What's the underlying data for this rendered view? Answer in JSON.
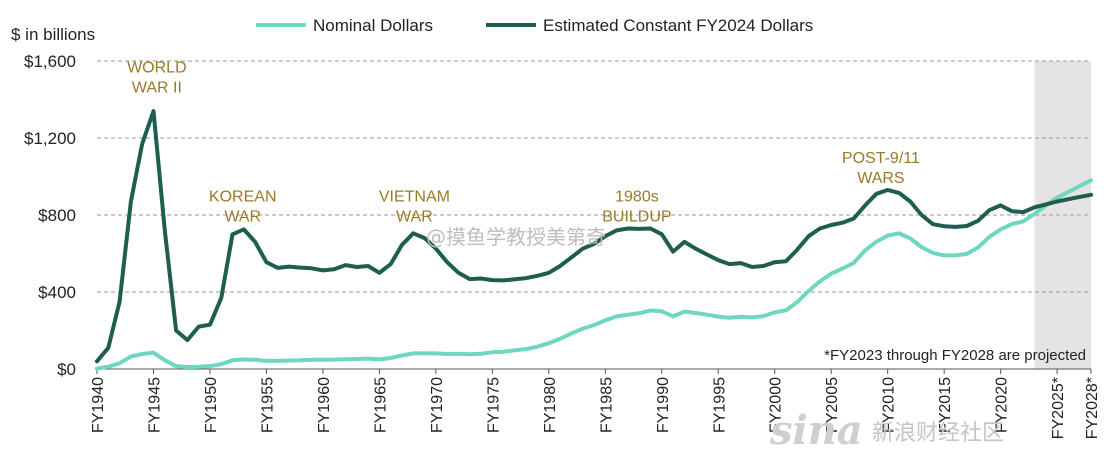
{
  "chart_data": {
    "type": "line",
    "y_unit_label": "$ in billions",
    "ylim": [
      0,
      1600
    ],
    "y_ticks": [
      "$0",
      "$400",
      "$800",
      "$1,200",
      "$1,600"
    ],
    "y_tick_values": [
      0,
      400,
      800,
      1200,
      1600
    ],
    "xlim": [
      1940,
      2028
    ],
    "x_tick_labels": [
      "FY1940",
      "FY1945",
      "FY1950",
      "FY1955",
      "FY1960",
      "FY1965",
      "FY1970",
      "FY1975",
      "FY1980",
      "FY1985",
      "FY1990",
      "FY1995",
      "FY2000",
      "FY2005",
      "FY2010",
      "FY2015",
      "FY2020",
      "FY2025*",
      "FY2028*"
    ],
    "x_tick_years": [
      1940,
      1945,
      1950,
      1955,
      1960,
      1965,
      1970,
      1975,
      1980,
      1985,
      1990,
      1995,
      2000,
      2005,
      2010,
      2015,
      2020,
      2025,
      2028
    ],
    "grid": "horizontal",
    "legend_position": "top",
    "projected_region": [
      2023,
      2028
    ],
    "series": [
      {
        "name": "Nominal Dollars",
        "color": "#6fd6c0",
        "points": [
          [
            1940,
            2
          ],
          [
            1941,
            12
          ],
          [
            1942,
            30
          ],
          [
            1943,
            65
          ],
          [
            1944,
            78
          ],
          [
            1945,
            85
          ],
          [
            1946,
            45
          ],
          [
            1947,
            15
          ],
          [
            1948,
            10
          ],
          [
            1949,
            12
          ],
          [
            1950,
            15
          ],
          [
            1951,
            25
          ],
          [
            1952,
            45
          ],
          [
            1953,
            50
          ],
          [
            1954,
            48
          ],
          [
            1955,
            42
          ],
          [
            1956,
            42
          ],
          [
            1957,
            44
          ],
          [
            1958,
            45
          ],
          [
            1959,
            48
          ],
          [
            1960,
            48
          ],
          [
            1961,
            49
          ],
          [
            1962,
            51
          ],
          [
            1963,
            52
          ],
          [
            1964,
            54
          ],
          [
            1965,
            50
          ],
          [
            1966,
            57
          ],
          [
            1967,
            70
          ],
          [
            1968,
            81
          ],
          [
            1969,
            82
          ],
          [
            1970,
            81
          ],
          [
            1971,
            78
          ],
          [
            1972,
            79
          ],
          [
            1973,
            77
          ],
          [
            1974,
            79
          ],
          [
            1975,
            87
          ],
          [
            1976,
            90
          ],
          [
            1977,
            97
          ],
          [
            1978,
            104
          ],
          [
            1979,
            116
          ],
          [
            1980,
            134
          ],
          [
            1981,
            157
          ],
          [
            1982,
            185
          ],
          [
            1983,
            210
          ],
          [
            1984,
            228
          ],
          [
            1985,
            253
          ],
          [
            1986,
            273
          ],
          [
            1987,
            282
          ],
          [
            1988,
            290
          ],
          [
            1989,
            304
          ],
          [
            1990,
            300
          ],
          [
            1991,
            273
          ],
          [
            1992,
            298
          ],
          [
            1993,
            291
          ],
          [
            1994,
            282
          ],
          [
            1995,
            272
          ],
          [
            1996,
            266
          ],
          [
            1997,
            271
          ],
          [
            1998,
            268
          ],
          [
            1999,
            275
          ],
          [
            2000,
            294
          ],
          [
            2001,
            305
          ],
          [
            2002,
            348
          ],
          [
            2003,
            405
          ],
          [
            2004,
            455
          ],
          [
            2005,
            495
          ],
          [
            2006,
            522
          ],
          [
            2007,
            551
          ],
          [
            2008,
            616
          ],
          [
            2009,
            661
          ],
          [
            2010,
            693
          ],
          [
            2011,
            705
          ],
          [
            2012,
            678
          ],
          [
            2013,
            633
          ],
          [
            2014,
            603
          ],
          [
            2015,
            590
          ],
          [
            2016,
            590
          ],
          [
            2017,
            598
          ],
          [
            2018,
            631
          ],
          [
            2019,
            686
          ],
          [
            2020,
            725
          ],
          [
            2021,
            753
          ],
          [
            2022,
            767
          ],
          [
            2023,
            805
          ],
          [
            2024,
            850
          ],
          [
            2025,
            890
          ],
          [
            2026,
            920
          ],
          [
            2027,
            950
          ],
          [
            2028,
            980
          ]
        ]
      },
      {
        "name": "Estimated Constant FY2024 Dollars",
        "color": "#1d5e4f",
        "points": [
          [
            1940,
            40
          ],
          [
            1941,
            110
          ],
          [
            1942,
            350
          ],
          [
            1943,
            870
          ],
          [
            1944,
            1170
          ],
          [
            1945,
            1340
          ],
          [
            1946,
            720
          ],
          [
            1947,
            200
          ],
          [
            1948,
            150
          ],
          [
            1949,
            220
          ],
          [
            1950,
            230
          ],
          [
            1951,
            370
          ],
          [
            1952,
            700
          ],
          [
            1953,
            725
          ],
          [
            1954,
            660
          ],
          [
            1955,
            555
          ],
          [
            1956,
            525
          ],
          [
            1957,
            532
          ],
          [
            1958,
            527
          ],
          [
            1959,
            523
          ],
          [
            1960,
            512
          ],
          [
            1961,
            518
          ],
          [
            1962,
            540
          ],
          [
            1963,
            530
          ],
          [
            1964,
            535
          ],
          [
            1965,
            500
          ],
          [
            1966,
            545
          ],
          [
            1967,
            645
          ],
          [
            1968,
            705
          ],
          [
            1969,
            680
          ],
          [
            1970,
            625
          ],
          [
            1971,
            555
          ],
          [
            1972,
            500
          ],
          [
            1973,
            467
          ],
          [
            1974,
            470
          ],
          [
            1975,
            462
          ],
          [
            1976,
            460
          ],
          [
            1977,
            466
          ],
          [
            1978,
            472
          ],
          [
            1979,
            484
          ],
          [
            1980,
            500
          ],
          [
            1981,
            535
          ],
          [
            1982,
            580
          ],
          [
            1983,
            625
          ],
          [
            1984,
            650
          ],
          [
            1985,
            690
          ],
          [
            1986,
            720
          ],
          [
            1987,
            730
          ],
          [
            1988,
            728
          ],
          [
            1989,
            730
          ],
          [
            1990,
            700
          ],
          [
            1991,
            610
          ],
          [
            1992,
            660
          ],
          [
            1993,
            625
          ],
          [
            1994,
            595
          ],
          [
            1995,
            565
          ],
          [
            1996,
            545
          ],
          [
            1997,
            550
          ],
          [
            1998,
            530
          ],
          [
            1999,
            535
          ],
          [
            2000,
            555
          ],
          [
            2001,
            560
          ],
          [
            2002,
            620
          ],
          [
            2003,
            690
          ],
          [
            2004,
            730
          ],
          [
            2005,
            748
          ],
          [
            2006,
            760
          ],
          [
            2007,
            782
          ],
          [
            2008,
            850
          ],
          [
            2009,
            910
          ],
          [
            2010,
            930
          ],
          [
            2011,
            915
          ],
          [
            2012,
            870
          ],
          [
            2013,
            800
          ],
          [
            2014,
            752
          ],
          [
            2015,
            742
          ],
          [
            2016,
            738
          ],
          [
            2017,
            743
          ],
          [
            2018,
            770
          ],
          [
            2019,
            825
          ],
          [
            2020,
            850
          ],
          [
            2021,
            820
          ],
          [
            2022,
            815
          ],
          [
            2023,
            840
          ],
          [
            2024,
            855
          ],
          [
            2025,
            870
          ],
          [
            2026,
            882
          ],
          [
            2027,
            894
          ],
          [
            2028,
            905
          ]
        ]
      }
    ],
    "annotations": [
      {
        "lines": [
          "WORLD",
          "WAR II"
        ],
        "year": 1945.3,
        "value": 1540
      },
      {
        "lines": [
          "KOREAN",
          "WAR"
        ],
        "year": 1952.9,
        "value": 870
      },
      {
        "lines": [
          "VIETNAM",
          "WAR"
        ],
        "year": 1968.1,
        "value": 870
      },
      {
        "lines": [
          "1980s",
          "BUILDUP"
        ],
        "year": 1987.8,
        "value": 870
      },
      {
        "lines": [
          "POST-9/11",
          "WARS"
        ],
        "year": 2009.4,
        "value": 1070
      }
    ],
    "footnote": "*FY2023 through FY2028 are projected"
  },
  "watermarks": {
    "weibo": "@摸鱼学教授美第奇",
    "sina_logo": "sina",
    "sina_text": "新浪财经社区"
  }
}
